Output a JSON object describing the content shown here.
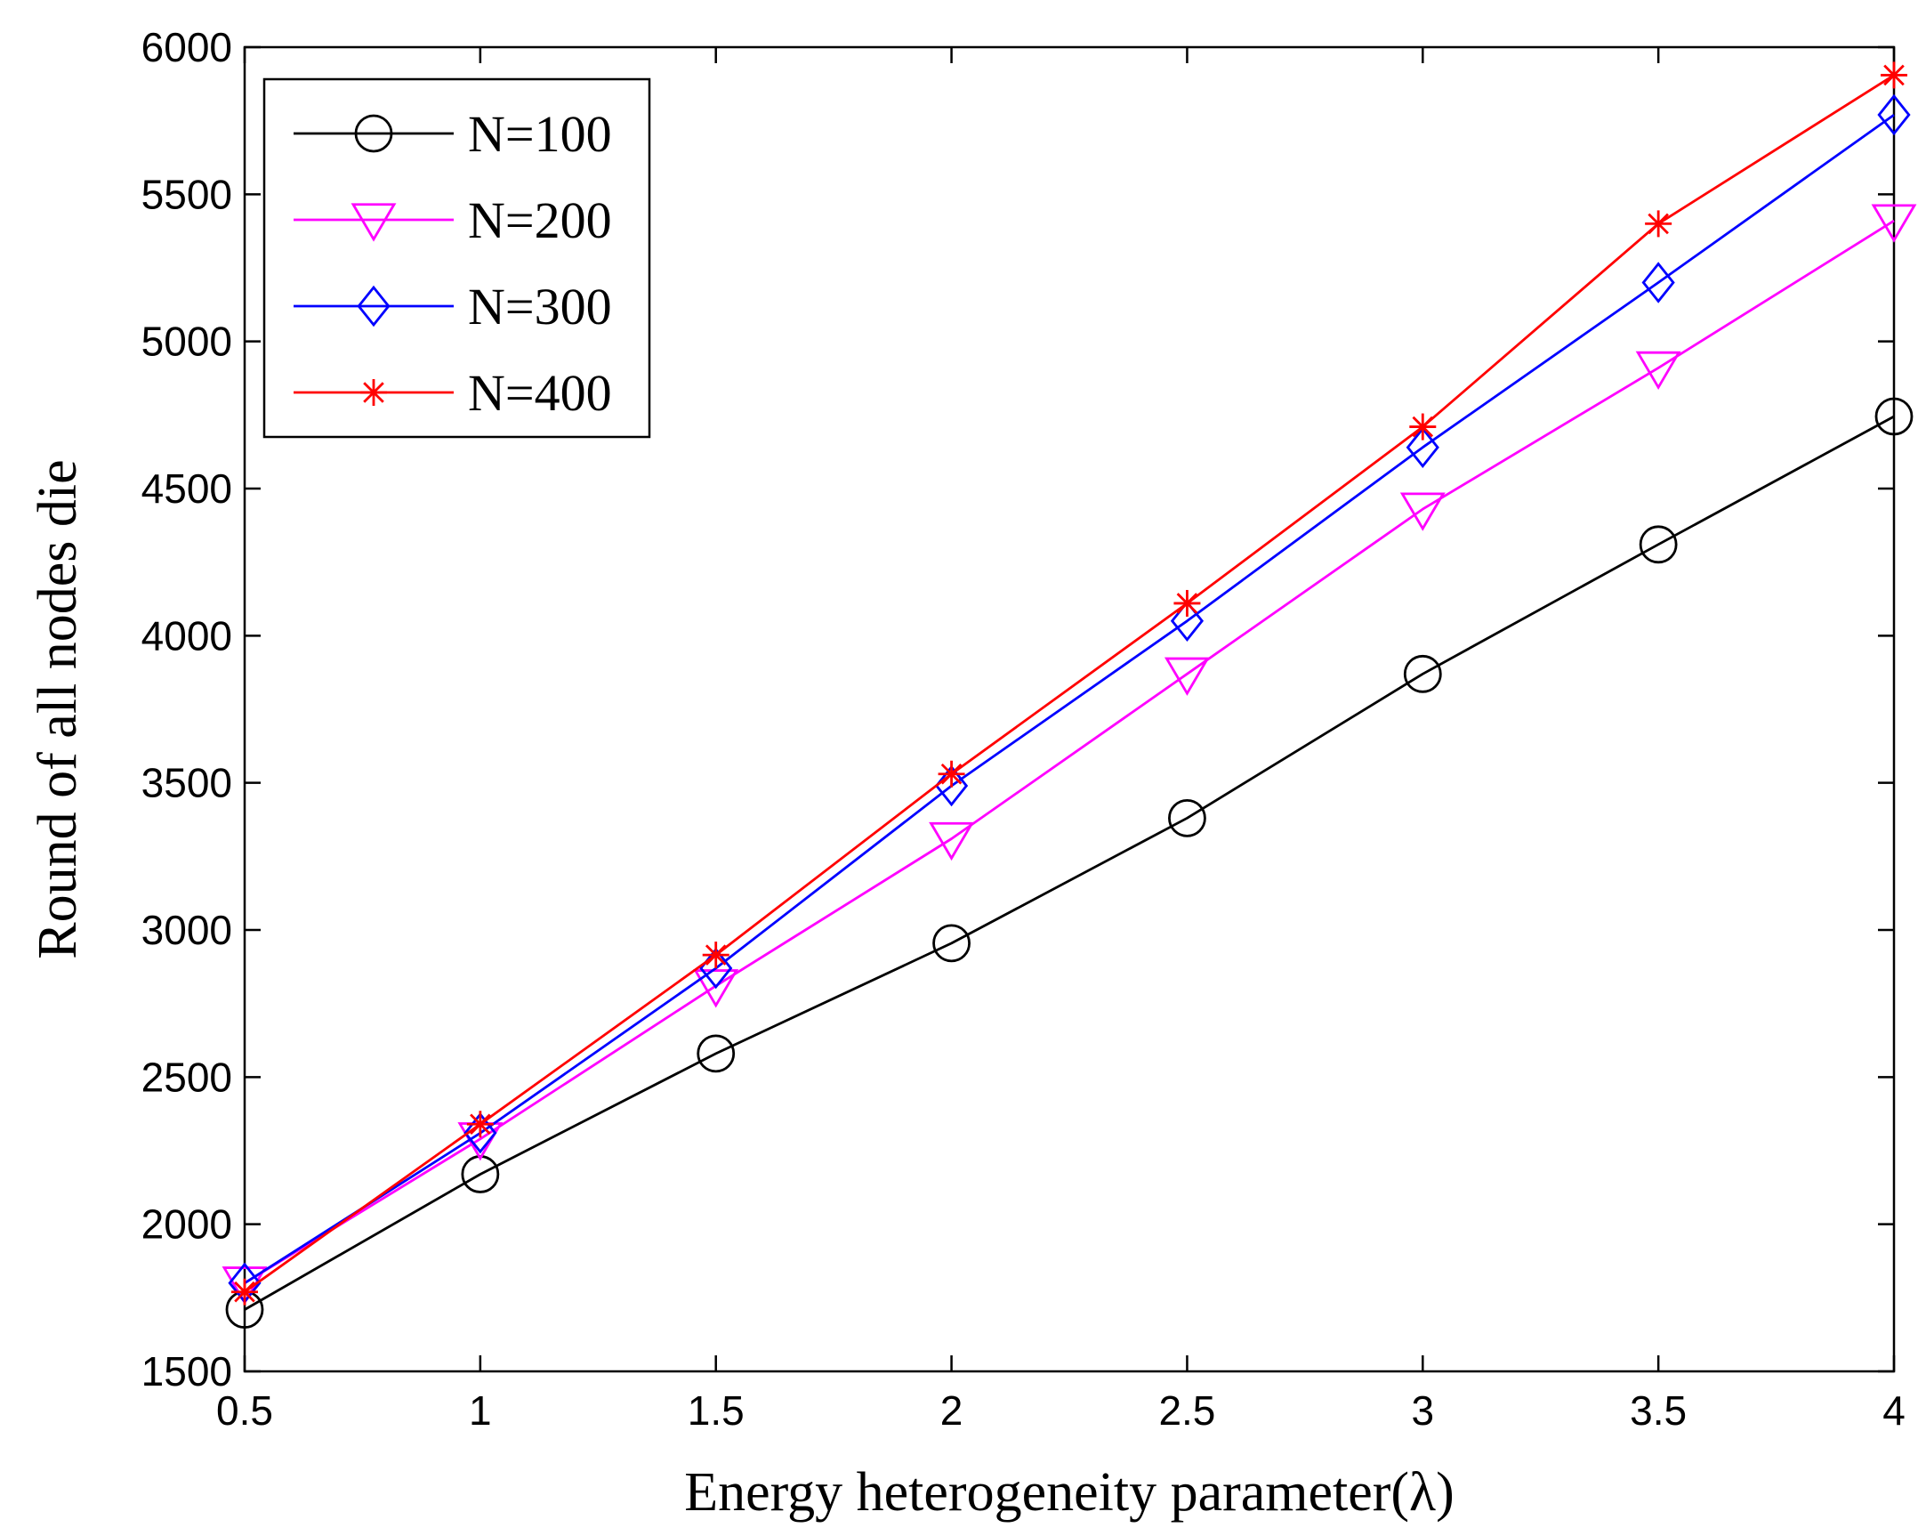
{
  "chart_data": {
    "type": "line",
    "title": "",
    "xlabel": "Energy heterogeneity parameter(λ)",
    "ylabel": "Round of all nodes die",
    "x": [
      0.5,
      1,
      1.5,
      2,
      2.5,
      3,
      3.5,
      4
    ],
    "x_tick_labels": [
      "0.5",
      "1",
      "1.5",
      "2",
      "2.5",
      "3",
      "3.5",
      "4"
    ],
    "y_ticks": [
      1500,
      2000,
      2500,
      3000,
      3500,
      4000,
      4500,
      5000,
      5500,
      6000
    ],
    "y_tick_labels": [
      "1500",
      "2000",
      "2500",
      "3000",
      "3500",
      "4000",
      "4500",
      "5000",
      "5500",
      "6000"
    ],
    "xlim": [
      0.5,
      4
    ],
    "ylim": [
      1500,
      6000
    ],
    "grid": false,
    "legend_position": "top-left",
    "series": [
      {
        "name": "N=100",
        "color": "#000000",
        "marker": "circle",
        "values": [
          1710,
          2170,
          2580,
          2955,
          3380,
          3870,
          4310,
          4745
        ]
      },
      {
        "name": "N=200",
        "color": "#ff00ff",
        "marker": "triangle-down",
        "values": [
          1800,
          2290,
          2810,
          3310,
          3870,
          4430,
          4910,
          5410
        ]
      },
      {
        "name": "N=300",
        "color": "#0000ff",
        "marker": "diamond",
        "values": [
          1800,
          2310,
          2870,
          3490,
          4050,
          4640,
          5200,
          5770
        ]
      },
      {
        "name": "N=400",
        "color": "#ff0000",
        "marker": "asterisk",
        "values": [
          1770,
          2340,
          2915,
          3530,
          4110,
          4710,
          5400,
          5905
        ]
      }
    ]
  }
}
